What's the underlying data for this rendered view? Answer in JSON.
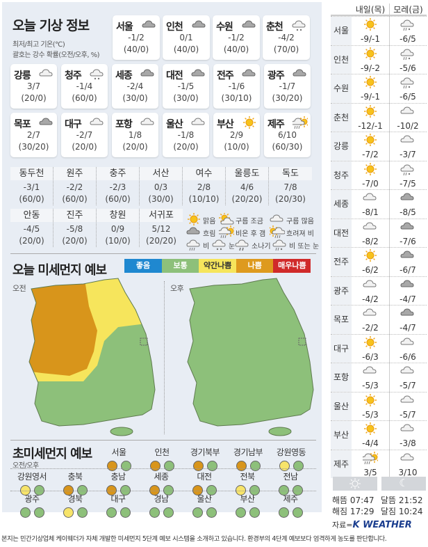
{
  "header": {
    "title": "오늘 기상 정보",
    "note1": "최저/최고 기온(℃)",
    "note2": "괄호는 강수 확률(오전/오후, %)"
  },
  "cities": [
    {
      "name": "서울",
      "icon": "overcast",
      "temp": "-1/2",
      "pop": "(40/0)"
    },
    {
      "name": "인천",
      "icon": "overcast",
      "temp": "0/1",
      "pop": "(40/0)"
    },
    {
      "name": "수원",
      "icon": "overcast",
      "temp": "-1/2",
      "pop": "(40/0)"
    },
    {
      "name": "춘천",
      "icon": "snow",
      "temp": "-4/2",
      "pop": "(70/0)"
    },
    {
      "name": "강릉",
      "icon": "cloudy",
      "temp": "3/7",
      "pop": "(20/0)"
    },
    {
      "name": "청주",
      "icon": "snow",
      "temp": "-1/4",
      "pop": "(60/0)"
    },
    {
      "name": "세종",
      "icon": "overcast",
      "temp": "-2/4",
      "pop": "(30/0)"
    },
    {
      "name": "대전",
      "icon": "overcast",
      "temp": "-1/5",
      "pop": "(30/0)"
    },
    {
      "name": "전주",
      "icon": "overcast",
      "temp": "-1/6",
      "pop": "(30/10)"
    },
    {
      "name": "광주",
      "icon": "overcast",
      "temp": "-1/7",
      "pop": "(30/20)"
    },
    {
      "name": "목포",
      "icon": "overcast",
      "temp": "2/7",
      "pop": "(30/20)"
    },
    {
      "name": "대구",
      "icon": "cloudy",
      "temp": "-2/7",
      "pop": "(20/0)"
    },
    {
      "name": "포항",
      "icon": "cloudy",
      "temp": "1/8",
      "pop": "(20/0)"
    },
    {
      "name": "울산",
      "icon": "cloudy",
      "temp": "-1/8",
      "pop": "(20/0)"
    },
    {
      "name": "부산",
      "icon": "sunny",
      "temp": "2/9",
      "pop": "(10/0)"
    },
    {
      "name": "제주",
      "icon": "rain-then-clear",
      "temp": "6/10",
      "pop": "(60/30)"
    }
  ],
  "small_cities": [
    {
      "name": "동두천",
      "temp": "-3/1",
      "pop": "(60/0)"
    },
    {
      "name": "원주",
      "temp": "-2/2",
      "pop": "(60/0)"
    },
    {
      "name": "충주",
      "temp": "-2/3",
      "pop": "(60/0)"
    },
    {
      "name": "서산",
      "temp": "0/3",
      "pop": "(30/0)"
    },
    {
      "name": "여수",
      "temp": "2/8",
      "pop": "(10/10)"
    },
    {
      "name": "울릉도",
      "temp": "4/6",
      "pop": "(20/20)"
    },
    {
      "name": "독도",
      "temp": "7/8",
      "pop": "(20/30)"
    },
    {
      "name": "안동",
      "temp": "-4/5",
      "pop": "(20/0)"
    },
    {
      "name": "진주",
      "temp": "-5/8",
      "pop": "(20/0)"
    },
    {
      "name": "창원",
      "temp": "0/9",
      "pop": "(10/0)"
    },
    {
      "name": "서귀포",
      "temp": "5/12",
      "pop": "(20/20)"
    }
  ],
  "legend": [
    {
      "icon": "sunny",
      "label": "맑음"
    },
    {
      "icon": "partly-cloudy",
      "label": "구름 조금"
    },
    {
      "icon": "cloudy",
      "label": "구름 많음"
    },
    {
      "icon": "overcast",
      "label": "흐림"
    },
    {
      "icon": "rain-then-clear",
      "label": "비온 후 갬"
    },
    {
      "icon": "clear-then-rain",
      "label": "흐려져 비"
    },
    {
      "icon": "rain",
      "label": "비"
    },
    {
      "icon": "snow",
      "label": "눈"
    },
    {
      "icon": "shower",
      "label": "소나기"
    },
    {
      "icon": "rain-or-snow",
      "label": "비 또는 눈"
    }
  ],
  "dust": {
    "title": "오늘 미세먼지 예보",
    "am": "오전",
    "pm": "오후",
    "levels": [
      {
        "label": "좋음",
        "color": "#1f88d0",
        "text": "#fff"
      },
      {
        "label": "보통",
        "color": "#8dc07a",
        "text": "#fff"
      },
      {
        "label": "약간나쁨",
        "color": "#f6e55c",
        "text": "#333"
      },
      {
        "label": "나쁨",
        "color": "#de9a1e",
        "text": "#fff"
      },
      {
        "label": "매우나쁨",
        "color": "#d02a2a",
        "text": "#fff"
      }
    ]
  },
  "ultrafine": {
    "title": "초미세먼지 예보",
    "sub": "오전/오후",
    "colors": {
      "bad": "#d8951b",
      "normal": "#8dc07a",
      "slightly-bad": "#f7e46a"
    },
    "regions": [
      {
        "name": "서울",
        "am": "bad",
        "pm": "normal"
      },
      {
        "name": "인천",
        "am": "bad",
        "pm": "normal"
      },
      {
        "name": "경기북부",
        "am": "bad",
        "pm": "normal"
      },
      {
        "name": "경기남부",
        "am": "bad",
        "pm": "normal"
      },
      {
        "name": "강원영동",
        "am": "slightly-bad",
        "pm": "normal"
      },
      {
        "name": "강원영서",
        "am": "slightly-bad",
        "pm": "normal"
      },
      {
        "name": "충북",
        "am": "bad",
        "pm": "normal"
      },
      {
        "name": "충남",
        "am": "bad",
        "pm": "normal"
      },
      {
        "name": "세종",
        "am": "bad",
        "pm": "normal"
      },
      {
        "name": "대전",
        "am": "bad",
        "pm": "normal"
      },
      {
        "name": "전북",
        "am": "slightly-bad",
        "pm": "normal"
      },
      {
        "name": "전남",
        "am": "normal",
        "pm": "normal"
      },
      {
        "name": "광주",
        "am": "normal",
        "pm": "normal"
      },
      {
        "name": "경북",
        "am": "slightly-bad",
        "pm": "normal"
      },
      {
        "name": "대구",
        "am": "normal",
        "pm": "normal"
      },
      {
        "name": "경남",
        "am": "normal",
        "pm": "normal"
      },
      {
        "name": "울산",
        "am": "normal",
        "pm": "normal"
      },
      {
        "name": "부산",
        "am": "normal",
        "pm": "normal"
      },
      {
        "name": "제주",
        "am": "normal",
        "pm": "normal"
      }
    ]
  },
  "forecast": {
    "tomorrow": "내일(목)",
    "dayafter": "모레(금)",
    "rows": [
      {
        "name": "서울",
        "t_icon": "sunny",
        "t": "-9/-1",
        "d_icon": "rain-or-snow",
        "d": "-6/5"
      },
      {
        "name": "인천",
        "t_icon": "sunny",
        "t": "-9/-2",
        "d_icon": "rain-or-snow",
        "d": "-5/6"
      },
      {
        "name": "수원",
        "t_icon": "sunny",
        "t": "-9/-1",
        "d_icon": "rain-or-snow",
        "d": "-6/5"
      },
      {
        "name": "춘천",
        "t_icon": "sunny",
        "t": "-12/-1",
        "d_icon": "cloudy",
        "d": "-10/2"
      },
      {
        "name": "강릉",
        "t_icon": "sunny",
        "t": "-7/2",
        "d_icon": "cloudy",
        "d": "-3/7"
      },
      {
        "name": "청주",
        "t_icon": "sunny",
        "t": "-7/0",
        "d_icon": "rain-or-snow",
        "d": "-7/5"
      },
      {
        "name": "세종",
        "t_icon": "cloudy",
        "t": "-8/1",
        "d_icon": "overcast",
        "d": "-8/5"
      },
      {
        "name": "대전",
        "t_icon": "cloudy",
        "t": "-8/2",
        "d_icon": "overcast",
        "d": "-7/6"
      },
      {
        "name": "전주",
        "t_icon": "sunny",
        "t": "-6/2",
        "d_icon": "overcast",
        "d": "-6/7"
      },
      {
        "name": "광주",
        "t_icon": "cloudy",
        "t": "-4/2",
        "d_icon": "overcast",
        "d": "-4/7"
      },
      {
        "name": "목포",
        "t_icon": "cloudy",
        "t": "-2/2",
        "d_icon": "overcast",
        "d": "-4/7"
      },
      {
        "name": "대구",
        "t_icon": "sunny",
        "t": "-6/3",
        "d_icon": "cloudy",
        "d": "-6/6"
      },
      {
        "name": "포항",
        "t_icon": "cloudy",
        "t": "-5/3",
        "d_icon": "cloudy",
        "d": "-5/7"
      },
      {
        "name": "울산",
        "t_icon": "sunny",
        "t": "-5/3",
        "d_icon": "cloudy",
        "d": "-5/7"
      },
      {
        "name": "부산",
        "t_icon": "sunny",
        "t": "-4/4",
        "d_icon": "cloudy",
        "d": "-3/8"
      },
      {
        "name": "제주",
        "t_icon": "rain-then-clear",
        "t": "3/5",
        "d_icon": "cloudy",
        "d": "3/10"
      }
    ]
  },
  "sun_moon": {
    "sunrise": "해뜸 07:47",
    "sunset": "해짐 17:29",
    "moonrise": "달뜸 21:52",
    "moonset": "달짐 10:24"
  },
  "source": {
    "prefix": "자료=",
    "logo": "K WEATHER"
  },
  "footnote": "본지는 민간기상업체 케이웨더가 자체 개발한 미세먼지 5단계 예보 시스템을 소개하고 있습니다. 환경부의 4단계 예보보다 엄격하게 농도를 판단합니다."
}
